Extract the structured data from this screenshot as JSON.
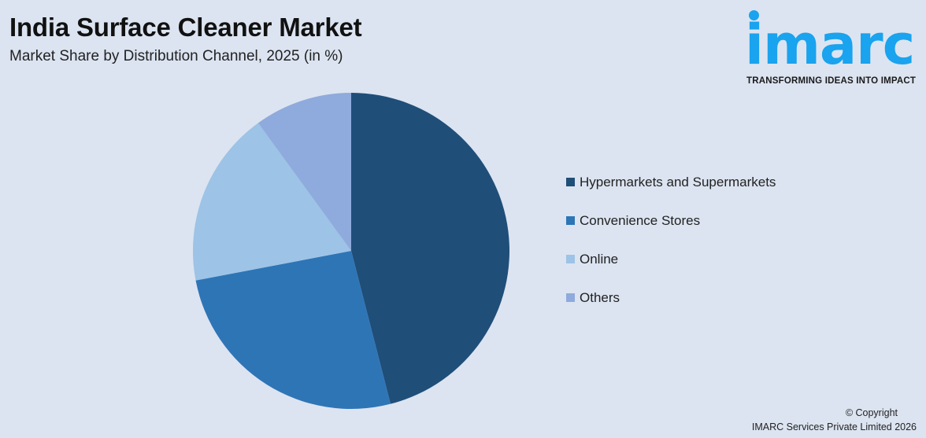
{
  "header": {
    "title": "India Surface Cleaner Market",
    "subtitle": "Market Share by Distribution Channel, 2025 (in %)"
  },
  "logo": {
    "text": "imarc",
    "tagline": "TRANSFORMING IDEAS INTO IMPACT",
    "color": "#1aa3ee"
  },
  "chart_data": {
    "type": "pie",
    "title": "India Surface Cleaner Market",
    "subtitle": "Market Share by Distribution Channel, 2025 (in %)",
    "categories": [
      "Hypermarkets and Supermarkets",
      "Convenience Stores",
      "Online",
      "Others"
    ],
    "values": [
      46,
      26,
      18,
      10
    ],
    "colors": [
      "#1f4e79",
      "#2e75b6",
      "#9dc3e6",
      "#8faadc"
    ],
    "legend_position": "right",
    "start_angle": "top, clockwise"
  },
  "footer": {
    "copyright": "© Copyright",
    "company": "IMARC Services Private Limited 2026"
  }
}
